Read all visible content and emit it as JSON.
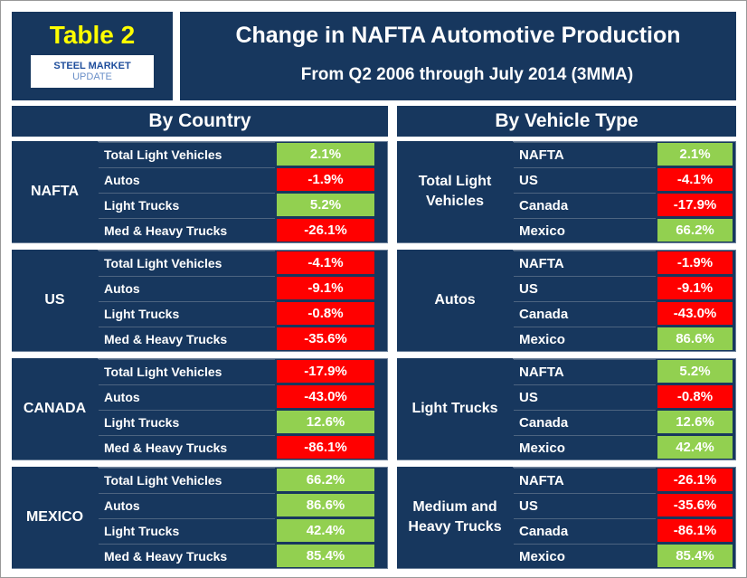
{
  "header": {
    "table_label": "Table 2",
    "logo_main": "STEEL MARKET",
    "logo_sub": "UPDATE",
    "title": "Change in NAFTA Automotive Production",
    "subtitle": "From Q2 2006 through July 2014 (3MMA)"
  },
  "by_country": {
    "title": "By Country",
    "groups": [
      {
        "label": "NAFTA",
        "rows": [
          {
            "label": "Total Light Vehicles",
            "value": "2.1%"
          },
          {
            "label": "Autos",
            "value": "-1.9%"
          },
          {
            "label": "Light Trucks",
            "value": "5.2%"
          },
          {
            "label": "Med & Heavy Trucks",
            "value": "-26.1%"
          }
        ]
      },
      {
        "label": "US",
        "rows": [
          {
            "label": "Total Light Vehicles",
            "value": "-4.1%"
          },
          {
            "label": "Autos",
            "value": "-9.1%"
          },
          {
            "label": "Light Trucks",
            "value": "-0.8%"
          },
          {
            "label": "Med & Heavy Trucks",
            "value": "-35.6%"
          }
        ]
      },
      {
        "label": "CANADA",
        "rows": [
          {
            "label": "Total Light Vehicles",
            "value": "-17.9%"
          },
          {
            "label": "Autos",
            "value": "-43.0%"
          },
          {
            "label": "Light Trucks",
            "value": "12.6%"
          },
          {
            "label": "Med & Heavy Trucks",
            "value": "-86.1%"
          }
        ]
      },
      {
        "label": "MEXICO",
        "rows": [
          {
            "label": "Total Light Vehicles",
            "value": "66.2%"
          },
          {
            "label": "Autos",
            "value": "86.6%"
          },
          {
            "label": "Light Trucks",
            "value": "42.4%"
          },
          {
            "label": "Med & Heavy Trucks",
            "value": "85.4%"
          }
        ]
      }
    ]
  },
  "by_vehicle_type": {
    "title": "By Vehicle Type",
    "groups": [
      {
        "label": "Total Light Vehicles",
        "rows": [
          {
            "label": "NAFTA",
            "value": "2.1%"
          },
          {
            "label": "US",
            "value": "-4.1%"
          },
          {
            "label": "Canada",
            "value": "-17.9%"
          },
          {
            "label": "Mexico",
            "value": "66.2%"
          }
        ]
      },
      {
        "label": "Autos",
        "rows": [
          {
            "label": "NAFTA",
            "value": "-1.9%"
          },
          {
            "label": "US",
            "value": "-9.1%"
          },
          {
            "label": "Canada",
            "value": "-43.0%"
          },
          {
            "label": "Mexico",
            "value": "86.6%"
          }
        ]
      },
      {
        "label": "Light Trucks",
        "rows": [
          {
            "label": "NAFTA",
            "value": "5.2%"
          },
          {
            "label": "US",
            "value": "-0.8%"
          },
          {
            "label": "Canada",
            "value": "12.6%"
          },
          {
            "label": "Mexico",
            "value": "42.4%"
          }
        ]
      },
      {
        "label": "Medium and Heavy Trucks",
        "rows": [
          {
            "label": "NAFTA",
            "value": "-26.1%"
          },
          {
            "label": "US",
            "value": "-35.6%"
          },
          {
            "label": "Canada",
            "value": "-86.1%"
          },
          {
            "label": "Mexico",
            "value": "85.4%"
          }
        ]
      }
    ]
  }
}
